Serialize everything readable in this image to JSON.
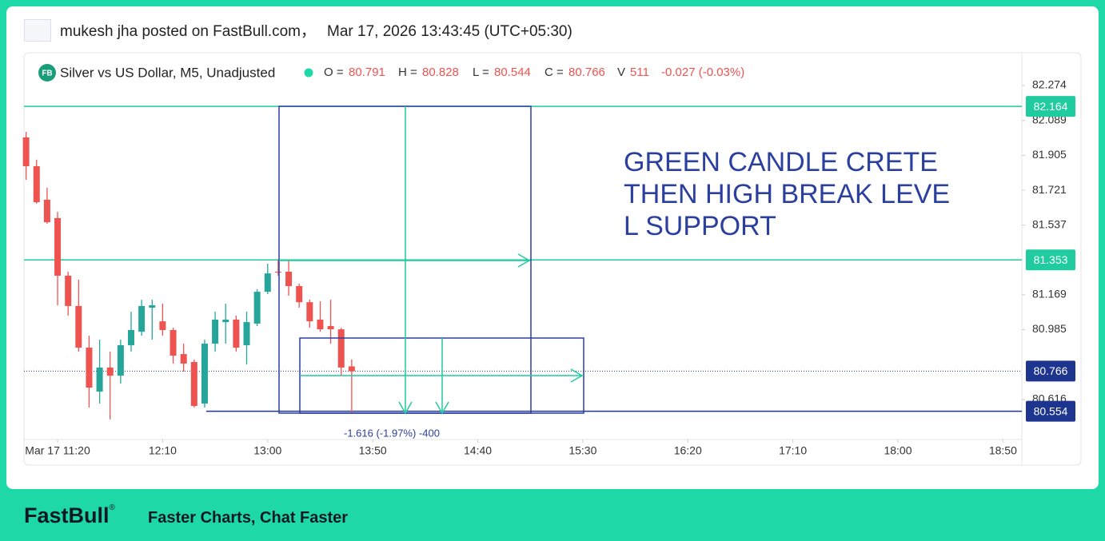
{
  "header": {
    "poster": "mukesh jha posted on FastBull.com，",
    "timestamp": "Mar 17, 2026 13:43:45 (UTC+05:30)"
  },
  "chart_data": {
    "type": "candlestick",
    "symbol_badge": "FB",
    "title": "Silver vs US Dollar, M5, Unadjusted",
    "open_label": "O =",
    "high_label": "H =",
    "low_label": "L =",
    "close_label": "C =",
    "volume_label": "V",
    "volume": 511,
    "change": "-0.027 (-0.03%)",
    "up_color": "#26a69a",
    "down_color": "#ef5350",
    "x": [
      "11:05",
      "11:10",
      "11:15",
      "11:20",
      "11:25",
      "11:30",
      "11:35",
      "11:40",
      "11:45",
      "11:50",
      "11:55",
      "12:00",
      "12:05",
      "12:10",
      "12:15",
      "12:20",
      "12:25",
      "12:30",
      "12:35",
      "12:40",
      "12:45",
      "12:50",
      "12:55",
      "13:00",
      "13:05",
      "13:10",
      "13:15",
      "13:20",
      "13:25",
      "13:30",
      "13:35",
      "13:40"
    ],
    "open": [
      82.0,
      81.848,
      81.671,
      81.574,
      81.27,
      81.11,
      80.89,
      80.658,
      80.785,
      80.742,
      80.903,
      80.974,
      81.101,
      81.029,
      80.983,
      80.856,
      80.814,
      80.595,
      80.911,
      81.025,
      81.038,
      80.903,
      81.017,
      81.185,
      81.291,
      81.291,
      81.215,
      81.13,
      81.038,
      81.004,
      80.987,
      80.791
    ],
    "high": [
      82.029,
      81.882,
      81.734,
      81.607,
      81.291,
      81.249,
      80.953,
      80.932,
      80.869,
      80.932,
      81.08,
      81.143,
      81.143,
      81.122,
      80.995,
      80.911,
      80.827,
      80.932,
      81.08,
      81.122,
      81.059,
      81.08,
      81.198,
      81.333,
      81.354,
      81.354,
      81.228,
      81.143,
      81.135,
      81.143,
      80.995,
      80.828
    ],
    "low": [
      81.776,
      81.65,
      81.544,
      81.114,
      81.059,
      80.869,
      80.574,
      80.595,
      80.511,
      80.7,
      80.869,
      80.953,
      80.932,
      80.953,
      80.806,
      80.763,
      80.574,
      80.574,
      80.869,
      80.911,
      80.869,
      80.802,
      81.004,
      81.173,
      81.27,
      81.164,
      81.101,
      80.995,
      80.974,
      80.911,
      80.742,
      80.544
    ],
    "close": [
      81.848,
      81.658,
      81.552,
      81.27,
      81.11,
      80.89,
      80.679,
      80.785,
      80.742,
      80.903,
      80.983,
      81.11,
      81.114,
      80.983,
      80.848,
      80.806,
      80.582,
      80.911,
      81.038,
      81.038,
      80.89,
      81.025,
      81.185,
      81.282,
      81.287,
      81.215,
      81.13,
      81.029,
      80.987,
      80.987,
      80.785,
      80.766
    ],
    "xlim": [
      "11:04",
      "18:59"
    ],
    "xticks": [
      "Mar 17 11:20",
      "12:10",
      "13:00",
      "13:50",
      "14:40",
      "15:30",
      "16:20",
      "17:10",
      "18:00",
      "18:50"
    ],
    "ylim": [
      80.405,
      82.447
    ],
    "yticks": [
      80.616,
      80.985,
      81.169,
      81.537,
      81.721,
      81.905,
      82.089,
      82.274
    ],
    "price_levels": [
      {
        "value": 82.164,
        "color": "#1fcb9f"
      },
      {
        "value": 81.353,
        "color": "#1fcb9f"
      },
      {
        "value": 80.554,
        "color": "#1e3590"
      }
    ],
    "last_price_color": "#1e3590",
    "annotation": [
      "GREEN CANDLE CRETE",
      "THEN HIGH BREAK LEVE",
      "L SUPPORT"
    ],
    "measure_label": "-1.616 (-1.97%) -400"
  },
  "footer": {
    "brand": "FastBull",
    "registered": "®",
    "tagline": "Faster Charts, Chat Faster"
  }
}
